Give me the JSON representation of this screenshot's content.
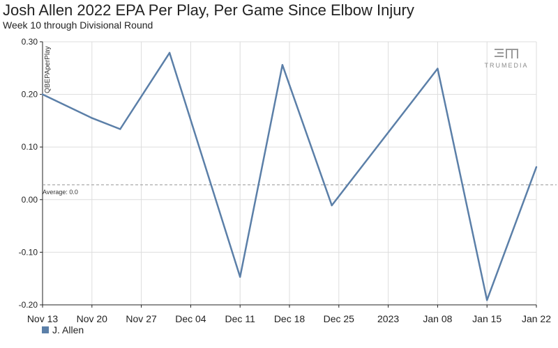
{
  "header": {
    "title": "Josh Allen 2022 EPA Per Play, Per Game Since Elbow Injury",
    "subtitle": "Week 10 through Divisional Round"
  },
  "logo": {
    "text": "TRUMEDIA"
  },
  "colors": {
    "series": "#5b7fa8",
    "grid": "#dddddd",
    "average_line": "#999999"
  },
  "chart_data": {
    "type": "line",
    "title": "Josh Allen 2022 EPA Per Play, Per Game Since Elbow Injury",
    "subtitle": "Week 10 through Divisional Round",
    "ylabel": "QBEPAperPlay",
    "xlabel": "",
    "x_ticks": [
      {
        "date": "2022-11-13",
        "label": "Nov 13"
      },
      {
        "date": "2022-11-20",
        "label": "Nov 20"
      },
      {
        "date": "2022-11-27",
        "label": "Nov 27"
      },
      {
        "date": "2022-12-04",
        "label": "Dec 04"
      },
      {
        "date": "2022-12-11",
        "label": "Dec 11"
      },
      {
        "date": "2022-12-18",
        "label": "Dec 18"
      },
      {
        "date": "2022-12-25",
        "label": "Dec 25"
      },
      {
        "date": "2023-01-01",
        "label": "2023"
      },
      {
        "date": "2023-01-08",
        "label": "Jan 08"
      },
      {
        "date": "2023-01-15",
        "label": "Jan 15"
      },
      {
        "date": "2023-01-22",
        "label": "Jan 22"
      }
    ],
    "y_ticks": [
      {
        "value": 0.3,
        "label": "0.30"
      },
      {
        "value": 0.2,
        "label": "0.20"
      },
      {
        "value": 0.1,
        "label": "0.10"
      },
      {
        "value": 0.0,
        "label": "0.00"
      },
      {
        "value": -0.1,
        "label": "-0.10"
      },
      {
        "value": -0.2,
        "label": "-0.20"
      }
    ],
    "xlim": [
      "2022-11-13",
      "2023-01-22"
    ],
    "ylim": [
      -0.2,
      0.3
    ],
    "grid": true,
    "legend_placement": "bottom-left",
    "series": [
      {
        "name": "J. Allen",
        "points": [
          {
            "x": "2022-11-13",
            "y": 0.2
          },
          {
            "x": "2022-11-20",
            "y": 0.155
          },
          {
            "x": "2022-11-24",
            "y": 0.134
          },
          {
            "x": "2022-12-01",
            "y": 0.279
          },
          {
            "x": "2022-12-11",
            "y": -0.147
          },
          {
            "x": "2022-12-17",
            "y": 0.256
          },
          {
            "x": "2022-12-24",
            "y": -0.011
          },
          {
            "x": "2023-01-08",
            "y": 0.249
          },
          {
            "x": "2023-01-15",
            "y": -0.191
          },
          {
            "x": "2023-01-22",
            "y": 0.062
          }
        ]
      }
    ],
    "average": {
      "label": "Average: 0.0",
      "value": 0.028
    }
  }
}
